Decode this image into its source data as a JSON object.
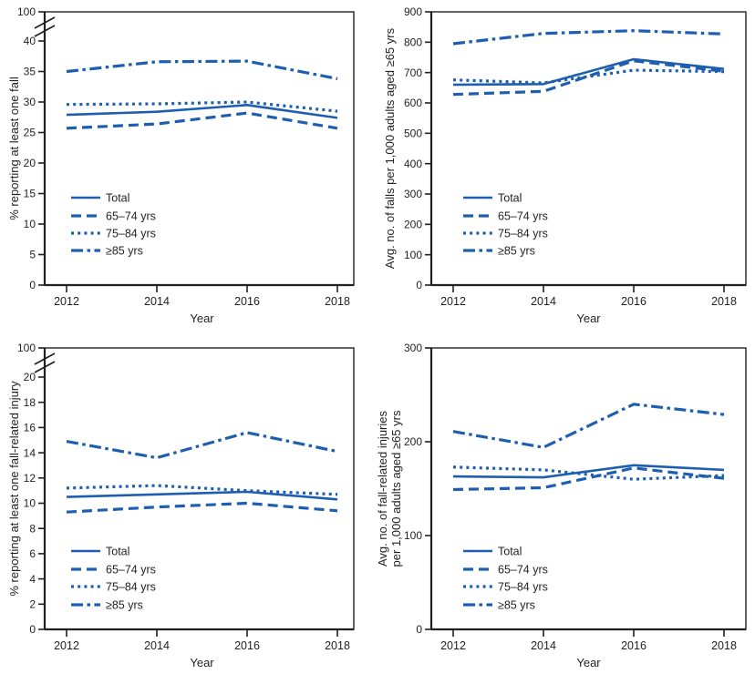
{
  "figure": {
    "description": "Four-panel line chart figure on falls and fall-related injuries among adults aged >=65 years, 2012-2018",
    "background_color": "#ffffff"
  },
  "styles": {
    "line_color": "#1e5eb0",
    "axis_color": "#231f20",
    "text_color": "#231f20"
  },
  "legend": {
    "items": [
      {
        "label": "Total",
        "style": "solid"
      },
      {
        "label": "65–74 yrs",
        "style": "dashed"
      },
      {
        "label": "75–84 yrs",
        "style": "dotted"
      },
      {
        "label": "≥85 yrs",
        "style": "dashdot"
      }
    ],
    "position": "lower-left-inside"
  },
  "chart_data": [
    {
      "id": "percent-one-fall",
      "type": "line",
      "position": "top-left",
      "xlabel": "Year",
      "ylabel_lines": [
        "% reporting at least one fall"
      ],
      "x": [
        2012,
        2014,
        2016,
        2018
      ],
      "x_tick_labels": [
        "2012",
        "2014",
        "2016",
        "2018"
      ],
      "y_axis": {
        "broken": true,
        "main_max": 40,
        "tick_step": 5,
        "top_label": 100
      },
      "grid": false,
      "series": [
        {
          "name": "Total",
          "style": "solid",
          "values": [
            27.9,
            28.4,
            29.5,
            27.4
          ]
        },
        {
          "name": "65–74 yrs",
          "style": "dashed",
          "values": [
            25.7,
            26.4,
            28.2,
            25.7
          ]
        },
        {
          "name": "75–84 yrs",
          "style": "dotted",
          "values": [
            29.6,
            29.7,
            30.0,
            28.5
          ]
        },
        {
          "name": "≥85 yrs",
          "style": "dashdot",
          "values": [
            35.0,
            36.6,
            36.7,
            33.8
          ]
        }
      ]
    },
    {
      "id": "avg-falls-per-1000",
      "type": "line",
      "position": "top-right",
      "xlabel": "Year",
      "ylabel_lines": [
        "Avg. no. of falls per 1,000 adults aged ≥65 yrs"
      ],
      "x": [
        2012,
        2014,
        2016,
        2018
      ],
      "x_tick_labels": [
        "2012",
        "2014",
        "2016",
        "2018"
      ],
      "y_axis": {
        "broken": false,
        "max": 900,
        "tick_step": 100
      },
      "grid": false,
      "series": [
        {
          "name": "Total",
          "style": "solid",
          "values": [
            660,
            662,
            744,
            712
          ]
        },
        {
          "name": "65–74 yrs",
          "style": "dashed",
          "values": [
            628,
            638,
            739,
            704
          ]
        },
        {
          "name": "75–84 yrs",
          "style": "dotted",
          "values": [
            676,
            666,
            708,
            703
          ]
        },
        {
          "name": "≥85 yrs",
          "style": "dashdot",
          "values": [
            795,
            829,
            838,
            827
          ]
        }
      ]
    },
    {
      "id": "percent-fall-related-injury",
      "type": "line",
      "position": "bottom-left",
      "xlabel": "Year",
      "ylabel_lines": [
        "% reporting at least one fall-related injury"
      ],
      "x": [
        2012,
        2014,
        2016,
        2018
      ],
      "x_tick_labels": [
        "2012",
        "2014",
        "2016",
        "2018"
      ],
      "y_axis": {
        "broken": true,
        "main_max": 20,
        "tick_step": 2,
        "top_label": 100
      },
      "grid": false,
      "series": [
        {
          "name": "Total",
          "style": "solid",
          "values": [
            10.5,
            10.7,
            10.9,
            10.3
          ]
        },
        {
          "name": "65–74 yrs",
          "style": "dashed",
          "values": [
            9.3,
            9.7,
            10.0,
            9.4
          ]
        },
        {
          "name": "75–84 yrs",
          "style": "dotted",
          "values": [
            11.2,
            11.4,
            11.0,
            10.7
          ]
        },
        {
          "name": "≥85 yrs",
          "style": "dashdot",
          "values": [
            14.9,
            13.6,
            15.6,
            14.1
          ]
        }
      ]
    },
    {
      "id": "avg-fall-related-injuries-per-1000",
      "type": "line",
      "position": "bottom-right",
      "xlabel": "Year",
      "ylabel_lines": [
        "Avg. no. of fall-related injuries",
        "per 1,000 adults aged ≥65 yrs"
      ],
      "x": [
        2012,
        2014,
        2016,
        2018
      ],
      "x_tick_labels": [
        "2012",
        "2014",
        "2016",
        "2018"
      ],
      "y_axis": {
        "broken": false,
        "max": 300,
        "tick_step": 100
      },
      "grid": false,
      "series": [
        {
          "name": "Total",
          "style": "solid",
          "values": [
            163,
            162,
            175,
            170
          ]
        },
        {
          "name": "65–74 yrs",
          "style": "dashed",
          "values": [
            149,
            151,
            172,
            161
          ]
        },
        {
          "name": "75–84 yrs",
          "style": "dotted",
          "values": [
            173,
            170,
            160,
            164
          ]
        },
        {
          "name": "≥85 yrs",
          "style": "dashdot",
          "values": [
            211,
            194,
            240,
            229
          ]
        }
      ]
    }
  ]
}
